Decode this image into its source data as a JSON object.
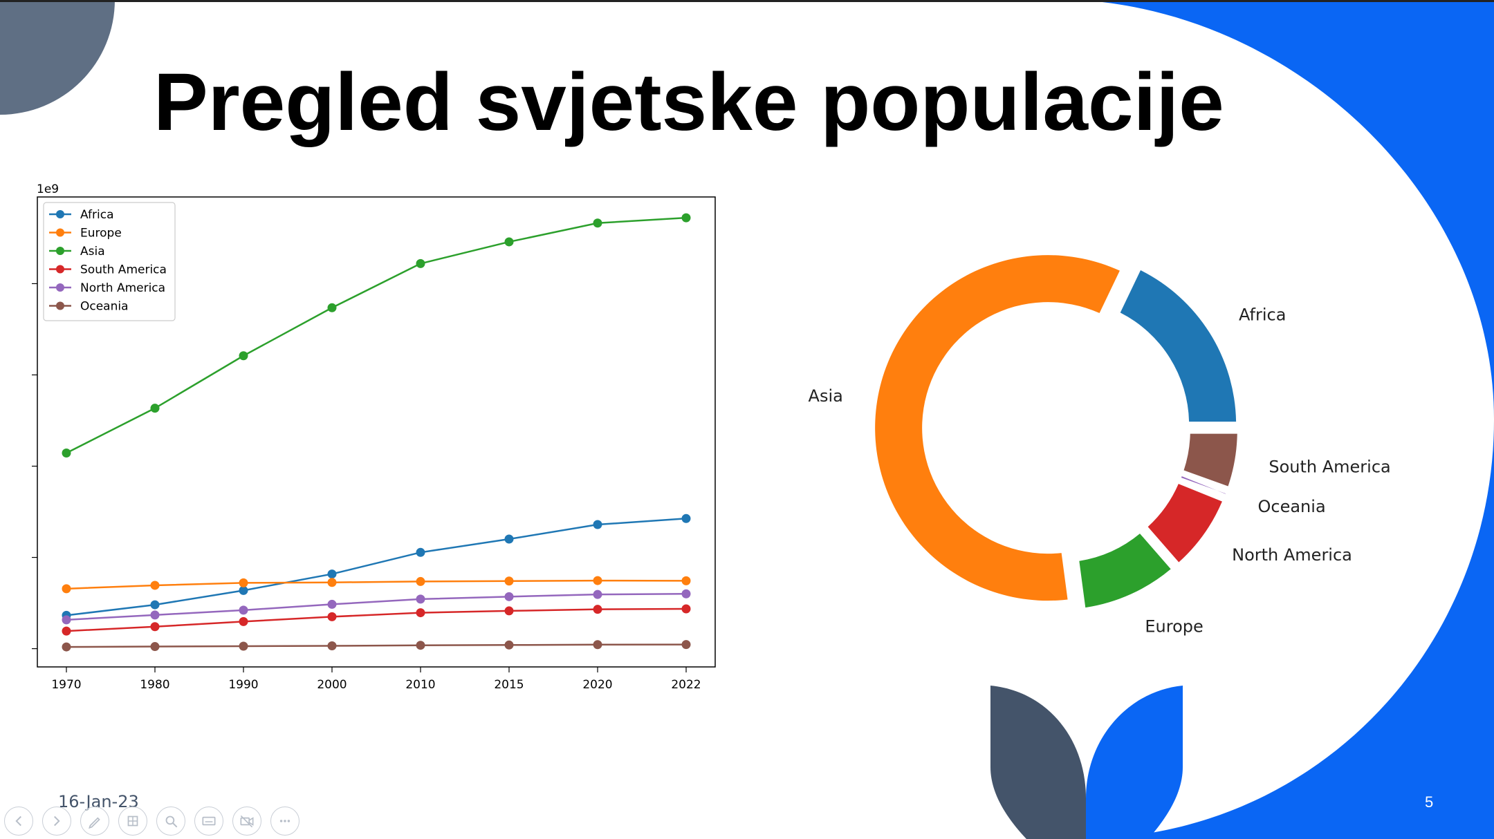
{
  "slide": {
    "title": "Pregled svjetske populacije",
    "date": "16-Jan-23",
    "page_number": "5",
    "colors": {
      "accent_blue": "#0a66f4",
      "slate": "#44546a",
      "slate_light": "#5f6f84"
    }
  },
  "toolbar": {
    "buttons": [
      {
        "name": "previous-slide-button",
        "icon": "arrow-left-icon"
      },
      {
        "name": "next-slide-button",
        "icon": "arrow-right-icon"
      },
      {
        "name": "pen-tool-button",
        "icon": "pen-icon"
      },
      {
        "name": "all-slides-button",
        "icon": "slides-grid-icon"
      },
      {
        "name": "zoom-button",
        "icon": "magnifier-icon"
      },
      {
        "name": "subtitles-button",
        "icon": "subtitles-icon"
      },
      {
        "name": "camera-toggle-button",
        "icon": "camera-off-icon"
      },
      {
        "name": "more-options-button",
        "icon": "ellipsis-icon"
      }
    ]
  },
  "chart_data": [
    {
      "type": "line",
      "x": [
        1970,
        1980,
        1990,
        2000,
        2010,
        2015,
        2020,
        2022
      ],
      "series": [
        {
          "name": "Africa",
          "color": "#1f77b4",
          "values": [
            0.365,
            0.481,
            0.638,
            0.818,
            1.055,
            1.201,
            1.36,
            1.426
          ]
        },
        {
          "name": "Europe",
          "color": "#ff7f0e",
          "values": [
            0.657,
            0.694,
            0.721,
            0.726,
            0.736,
            0.741,
            0.746,
            0.744
          ]
        },
        {
          "name": "Asia",
          "color": "#2ca02c",
          "values": [
            2.144,
            2.635,
            3.21,
            3.736,
            4.22,
            4.458,
            4.664,
            4.722
          ]
        },
        {
          "name": "South America",
          "color": "#d62728",
          "values": [
            0.193,
            0.241,
            0.297,
            0.35,
            0.394,
            0.414,
            0.431,
            0.436
          ]
        },
        {
          "name": "North America",
          "color": "#9467bd",
          "values": [
            0.316,
            0.369,
            0.422,
            0.486,
            0.543,
            0.57,
            0.594,
            0.601
          ]
        },
        {
          "name": "Oceania",
          "color": "#8c564b",
          "values": [
            0.019,
            0.023,
            0.027,
            0.031,
            0.037,
            0.04,
            0.044,
            0.045
          ]
        }
      ],
      "ylim": [
        -0.2,
        4.95
      ],
      "yticks": [
        0,
        1,
        2,
        3,
        4
      ],
      "xtick_labels": [
        "1970",
        "1980",
        "1990",
        "2000",
        "2010",
        "2015",
        "2020",
        "2022"
      ],
      "scale_label": "1e9",
      "legend": "top-left",
      "grid": false
    },
    {
      "type": "pie",
      "style": "donut",
      "labels": [
        "Africa",
        "Asia",
        "Europe",
        "North America",
        "Oceania",
        "South America"
      ],
      "values": [
        17.9,
        59.2,
        9.3,
        7.5,
        0.6,
        5.5
      ],
      "colors": [
        "#1f77b4",
        "#ff7f0e",
        "#2ca02c",
        "#d62728",
        "#9467bd",
        "#8c564b"
      ],
      "exploded": true,
      "legend": "none"
    }
  ]
}
